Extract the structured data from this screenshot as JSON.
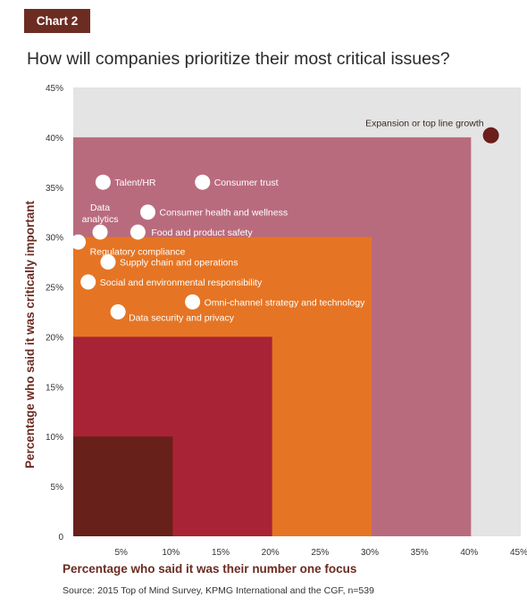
{
  "badge": "Chart 2",
  "title": "How will companies prioritize their most critical issues?",
  "source": "Source: 2015 Top of Mind Survey, KPMG International and the CGF, n=539",
  "colors": {
    "background_panel": "#e4e4e4",
    "band_40": "#b96b7e",
    "band_30": "#e57524",
    "band_20": "#a82335",
    "band_10": "#67201a",
    "point_white": "#ffffff",
    "point_dark": "#6b1e1a",
    "badge": "#6d2c22",
    "axis_label": "#6b2b22"
  },
  "chart_data": {
    "type": "scatter",
    "title": "How will companies prioritize their most critical issues?",
    "xlabel": "Percentage who said it was their number one focus",
    "ylabel": "Percentage who said it was critically important",
    "xlim": [
      0,
      45
    ],
    "ylim": [
      0,
      45
    ],
    "x_ticks": [
      "5%",
      "10%",
      "15%",
      "20%",
      "25%",
      "30%",
      "35%",
      "40%",
      "45%"
    ],
    "y_ticks": [
      "0",
      "5%",
      "10%",
      "15%",
      "20%",
      "25%",
      "30%",
      "35%",
      "40%",
      "45%"
    ],
    "grid": false,
    "bands": [
      {
        "x_max": 40,
        "y_max": 40
      },
      {
        "x_max": 30,
        "y_max": 30
      },
      {
        "x_max": 20,
        "y_max": 20
      },
      {
        "x_max": 10,
        "y_max": 10
      }
    ],
    "points": [
      {
        "label": "Expansion or top line growth",
        "x": 42,
        "y": 40.2,
        "highlight": true
      },
      {
        "label": "Talent/HR",
        "x": 3,
        "y": 35.5
      },
      {
        "label": "Consumer trust",
        "x": 13,
        "y": 35.5
      },
      {
        "label": "Consumer health and wellness",
        "x": 7.5,
        "y": 32.5
      },
      {
        "label": "Data analytics",
        "x": 2.7,
        "y": 30.5
      },
      {
        "label": "Food and product safety",
        "x": 6.5,
        "y": 30.5
      },
      {
        "label": "Regulatory compliance",
        "x": 0.5,
        "y": 29.5
      },
      {
        "label": "Supply chain and operations",
        "x": 3.5,
        "y": 27.5
      },
      {
        "label": "Social and environmental responsibility",
        "x": 1.5,
        "y": 25.5
      },
      {
        "label": "Omni-channel strategy and technology",
        "x": 12,
        "y": 23.5
      },
      {
        "label": "Data security and privacy",
        "x": 4.5,
        "y": 22.5
      }
    ]
  }
}
